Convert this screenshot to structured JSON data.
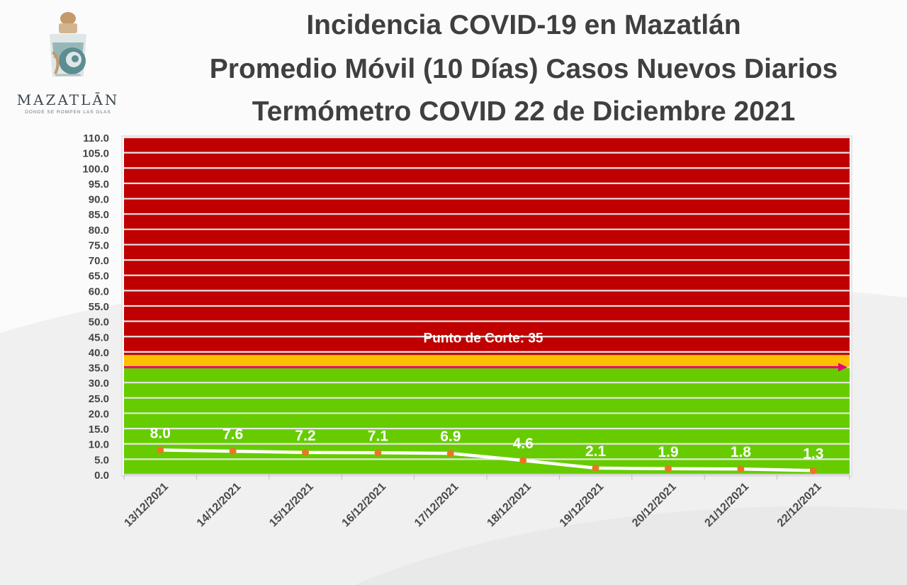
{
  "logo": {
    "name": "MAZATLĀN",
    "tagline": "DONDE SE ROMPEN LAS OLAS"
  },
  "title_lines": [
    "Incidencia COVID-19 en Mazatlán",
    "Promedio Móvil (10 Días) Casos Nuevos Diarios",
    "Termómetro COVID 22 de Diciembre 2021"
  ],
  "chart_data": {
    "type": "line",
    "title": "Incidencia COVID-19 en Mazatlán",
    "x": [
      "13/12/2021",
      "14/12/2021",
      "15/12/2021",
      "16/12/2021",
      "17/12/2021",
      "18/12/2021",
      "19/12/2021",
      "20/12/2021",
      "21/12/2021",
      "22/12/2021"
    ],
    "series": [
      {
        "values": [
          8.0,
          7.6,
          7.2,
          7.1,
          6.9,
          4.6,
          2.1,
          1.9,
          1.8,
          1.3
        ],
        "labels": [
          "8.0",
          "7.6",
          "7.2",
          "7.1",
          "6.9",
          "4.6",
          "2.1",
          "1.9",
          "1.8",
          "1.3"
        ],
        "line_color": "#ffffff",
        "marker_color": "#e87722"
      }
    ],
    "ylim": [
      0,
      110
    ],
    "ytick_step": 5,
    "ytick_labels": [
      "0.0",
      "5.0",
      "10.0",
      "15.0",
      "20.0",
      "25.0",
      "30.0",
      "35.0",
      "40.0",
      "45.0",
      "50.0",
      "55.0",
      "60.0",
      "65.0",
      "70.0",
      "75.0",
      "80.0",
      "85.0",
      "90.0",
      "95.0",
      "100.0",
      "105.0",
      "110.0"
    ],
    "grid": true,
    "bands": [
      {
        "from": 0,
        "to": 35,
        "color": "#66cc00"
      },
      {
        "from": 35,
        "to": 39,
        "color": "#ffc000"
      },
      {
        "from": 39,
        "to": 110,
        "color": "#c00000"
      }
    ],
    "threshold": {
      "value": 35,
      "label": "Punto de Corte: 35",
      "color": "#e6007e"
    }
  }
}
